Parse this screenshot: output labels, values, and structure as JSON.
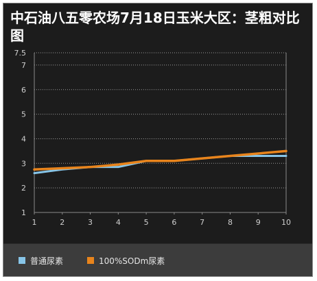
{
  "chart": {
    "title": "中石油八五零农场7月18日玉米大区：茎粗对比图"
  },
  "chart_data": {
    "type": "line",
    "title": "中石油八五零农场7月18日玉米大区：茎粗对比图",
    "xlabel": "",
    "ylabel": "",
    "x": [
      1,
      2,
      3,
      4,
      5,
      6,
      7,
      8,
      9,
      10
    ],
    "x_ticks": [
      "1",
      "2",
      "3",
      "4",
      "5",
      "6",
      "7",
      "8",
      "9",
      "10"
    ],
    "y_ticks": [
      "1",
      "2",
      "3",
      "4",
      "5",
      "6",
      "7",
      "7.5"
    ],
    "ylim": [
      1,
      7.5
    ],
    "grid": true,
    "legend_position": "bottom",
    "series": [
      {
        "name": "普通尿素",
        "color": "#87c5e8",
        "values": [
          2.6,
          2.75,
          2.85,
          2.85,
          3.1,
          3.1,
          3.2,
          3.3,
          3.3,
          3.3
        ]
      },
      {
        "name": "100%SODm尿素",
        "color": "#e8841c",
        "values": [
          2.75,
          2.8,
          2.85,
          2.95,
          3.1,
          3.1,
          3.2,
          3.3,
          3.4,
          3.5
        ]
      }
    ]
  }
}
